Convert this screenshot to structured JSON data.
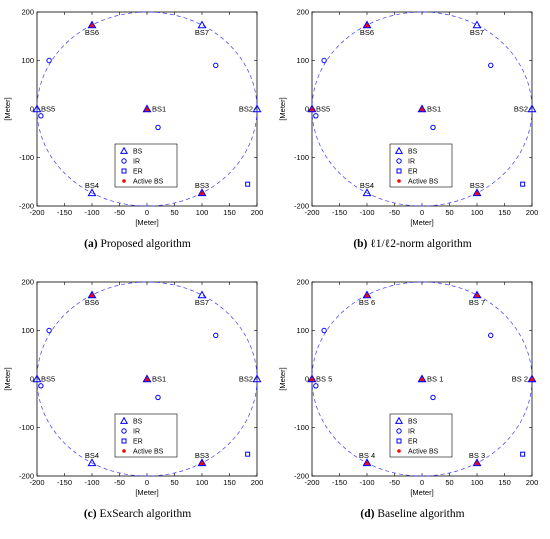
{
  "colors": {
    "blue": "#0000ff",
    "active": "#ff0000",
    "active_fill": "#b03060",
    "circle": "#3b3bff"
  },
  "panels": [
    {
      "caption_label": "(a)",
      "caption_text": "Proposed algorithm",
      "chart_data": {
        "type": "scatter",
        "xlabel": "[Meter]",
        "ylabel": "[Meter]",
        "xlim": [
          -200,
          200
        ],
        "ylim": [
          -200,
          200
        ],
        "xticks": [
          -200,
          -150,
          -100,
          -50,
          0,
          50,
          100,
          150,
          200
        ],
        "yticks": [
          -200,
          -100,
          0,
          100,
          200
        ],
        "circle": {
          "center": [
            0,
            0
          ],
          "radius": 200,
          "style": "dashed"
        },
        "legend": [
          "BS",
          "IR",
          "ER",
          "Active BS"
        ],
        "legend_position": "bottom-center",
        "bs": [
          {
            "label": "BS1",
            "x": 0,
            "y": 0,
            "active": true
          },
          {
            "label": "BS2",
            "x": 200,
            "y": 0,
            "active": false
          },
          {
            "label": "BS3",
            "x": 100,
            "y": -173,
            "active": true
          },
          {
            "label": "BS4",
            "x": -100,
            "y": -173,
            "active": false
          },
          {
            "label": "BS5",
            "x": -200,
            "y": 0,
            "active": false
          },
          {
            "label": "BS6",
            "x": -100,
            "y": 173,
            "active": true
          },
          {
            "label": "BS7",
            "x": 100,
            "y": 173,
            "active": false
          }
        ],
        "ir": [
          {
            "x": -178,
            "y": 100
          },
          {
            "x": -193,
            "y": -14
          },
          {
            "x": 125,
            "y": 90
          },
          {
            "x": 20,
            "y": -38
          }
        ],
        "er": [
          {
            "x": 183,
            "y": -155
          }
        ]
      }
    },
    {
      "caption_label": "(b)",
      "caption_text": "ℓ1/ℓ2-norm algorithm",
      "chart_data": {
        "type": "scatter",
        "xlabel": "[Meter]",
        "ylabel": "[Meter]",
        "xlim": [
          -200,
          200
        ],
        "ylim": [
          -200,
          200
        ],
        "xticks": [
          -200,
          -150,
          -100,
          -50,
          0,
          50,
          100,
          150,
          200
        ],
        "yticks": [
          -200,
          -100,
          0,
          100,
          200
        ],
        "circle": {
          "center": [
            0,
            0
          ],
          "radius": 200,
          "style": "dashed"
        },
        "legend": [
          "BS",
          "IR",
          "ER",
          "Active BS"
        ],
        "legend_position": "bottom-center",
        "bs": [
          {
            "label": "BS1",
            "x": 0,
            "y": 0,
            "active": true
          },
          {
            "label": "BS2",
            "x": 200,
            "y": 0,
            "active": false
          },
          {
            "label": "BS3",
            "x": 100,
            "y": -173,
            "active": true
          },
          {
            "label": "BS4",
            "x": -100,
            "y": -173,
            "active": false
          },
          {
            "label": "BS5",
            "x": -200,
            "y": 0,
            "active": true
          },
          {
            "label": "BS6",
            "x": -100,
            "y": 173,
            "active": true
          },
          {
            "label": "BS7",
            "x": 100,
            "y": 173,
            "active": false
          }
        ],
        "ir": [
          {
            "x": -178,
            "y": 100
          },
          {
            "x": -193,
            "y": -14
          },
          {
            "x": 125,
            "y": 90
          },
          {
            "x": 20,
            "y": -38
          }
        ],
        "er": [
          {
            "x": 183,
            "y": -155
          }
        ]
      }
    },
    {
      "caption_label": "(c)",
      "caption_text": "ExSearch algorithm",
      "chart_data": {
        "type": "scatter",
        "xlabel": "[Meter]",
        "ylabel": "[Meter]",
        "xlim": [
          -200,
          200
        ],
        "ylim": [
          -200,
          200
        ],
        "xticks": [
          -200,
          -150,
          -100,
          -50,
          0,
          50,
          100,
          150,
          200
        ],
        "yticks": [
          -200,
          -100,
          0,
          100,
          200
        ],
        "circle": {
          "center": [
            0,
            0
          ],
          "radius": 200,
          "style": "dashed"
        },
        "legend": [
          "BS",
          "IR",
          "ER",
          "Active BS"
        ],
        "legend_position": "bottom-center",
        "bs": [
          {
            "label": "BS1",
            "x": 0,
            "y": 0,
            "active": true
          },
          {
            "label": "BS2",
            "x": 200,
            "y": 0,
            "active": false
          },
          {
            "label": "BS3",
            "x": 100,
            "y": -173,
            "active": true
          },
          {
            "label": "BS4",
            "x": -100,
            "y": -173,
            "active": false
          },
          {
            "label": "BS5",
            "x": -200,
            "y": 0,
            "active": false
          },
          {
            "label": "BS6",
            "x": -100,
            "y": 173,
            "active": true
          },
          {
            "label": "BS7",
            "x": 100,
            "y": 173,
            "active": false
          }
        ],
        "ir": [
          {
            "x": -178,
            "y": 100
          },
          {
            "x": -193,
            "y": -14
          },
          {
            "x": 125,
            "y": 90
          },
          {
            "x": 20,
            "y": -38
          }
        ],
        "er": [
          {
            "x": 183,
            "y": -155
          }
        ]
      }
    },
    {
      "caption_label": "(d)",
      "caption_text": "Baseline algorithm",
      "chart_data": {
        "type": "scatter",
        "xlabel": "[Meter]",
        "ylabel": "[Meter]",
        "xlim": [
          -200,
          200
        ],
        "ylim": [
          -200,
          200
        ],
        "xticks": [
          -200,
          -150,
          -100,
          -50,
          0,
          50,
          100,
          150,
          200
        ],
        "yticks": [
          -200,
          -100,
          0,
          100,
          200
        ],
        "circle": {
          "center": [
            0,
            0
          ],
          "radius": 200,
          "style": "dashed"
        },
        "legend": [
          "BS",
          "IR",
          "ER",
          "Active BS"
        ],
        "legend_position": "bottom-center",
        "bs": [
          {
            "label": "BS 1",
            "x": 0,
            "y": 0,
            "active": true
          },
          {
            "label": "BS 2",
            "x": 200,
            "y": 0,
            "active": true
          },
          {
            "label": "BS 3",
            "x": 100,
            "y": -173,
            "active": true
          },
          {
            "label": "BS 4",
            "x": -100,
            "y": -173,
            "active": true
          },
          {
            "label": "BS 5",
            "x": -200,
            "y": 0,
            "active": true
          },
          {
            "label": "BS 6",
            "x": -100,
            "y": 173,
            "active": true
          },
          {
            "label": "BS 7",
            "x": 100,
            "y": 173,
            "active": true
          }
        ],
        "ir": [
          {
            "x": -178,
            "y": 100
          },
          {
            "x": -193,
            "y": -14
          },
          {
            "x": 125,
            "y": 90
          },
          {
            "x": 20,
            "y": -38
          }
        ],
        "er": [
          {
            "x": 183,
            "y": -155
          }
        ]
      }
    }
  ]
}
